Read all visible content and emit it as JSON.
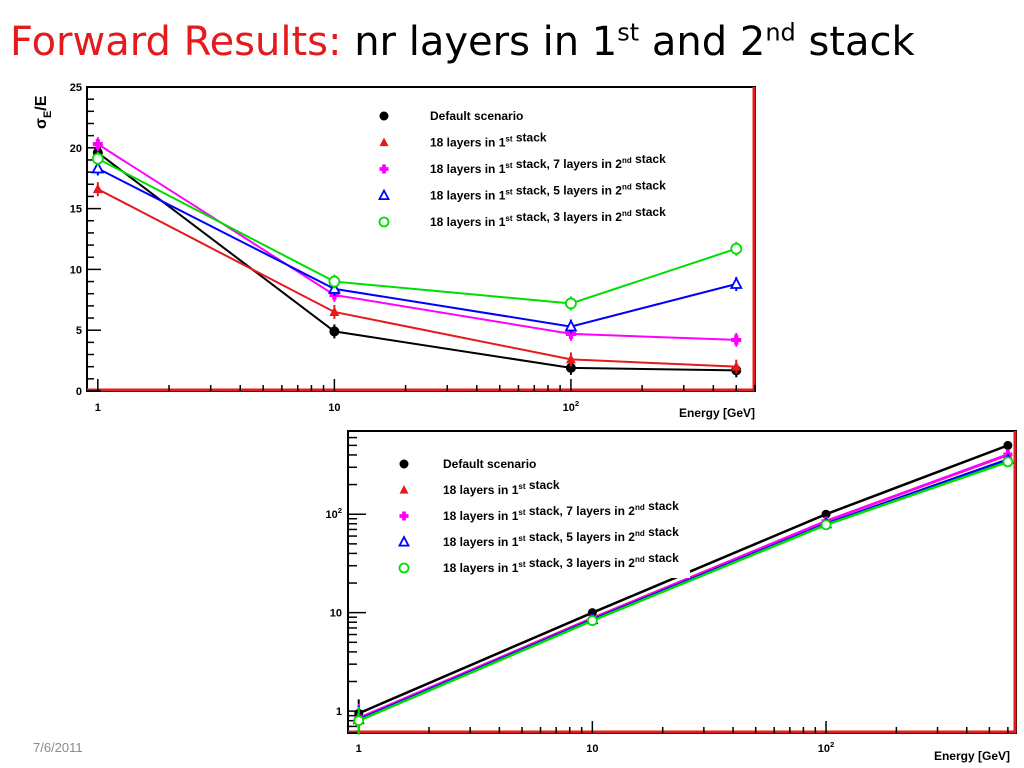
{
  "slide": {
    "title_red": "Forward Results:",
    "title_black_1": " nr layers in 1",
    "title_sup_1": "st",
    "title_black_2": " and 2",
    "title_sup_2": "nd",
    "title_black_3": " stack",
    "date": "7/6/2011"
  },
  "legend_entries": [
    {
      "text": "Default scenario",
      "color": "#000000",
      "marker": "filled-circle"
    },
    {
      "text": "18 layers in 1st stack",
      "color": "#e41a1c",
      "marker": "filled-triangle"
    },
    {
      "text": "18 layers in 1st stack, 7 layers in  2nd stack",
      "color": "#ff00ff",
      "marker": "filled-cross"
    },
    {
      "text": "18 layers in 1st stack, 5 layers in  2nd stack",
      "color": "#0000ff",
      "marker": "open-triangle"
    },
    {
      "text": "18 layers in 1st stack, 3 layers in  2nd stack",
      "color": "#00dd00",
      "marker": "open-circle"
    }
  ],
  "chart_data": [
    {
      "type": "line",
      "xscale": "log",
      "xlim": [
        0.9,
        600
      ],
      "ylim": [
        0,
        25
      ],
      "ylabel": "σE/E",
      "xlabel": "Energy [GeV]",
      "x_ticks": [
        "1",
        "10",
        "10^2"
      ],
      "y_ticks": [
        "0",
        "5",
        "10",
        "15",
        "20",
        "25"
      ],
      "legend_position": "top-right",
      "x": [
        1,
        10,
        100,
        500
      ],
      "series": [
        {
          "name": "Default scenario",
          "values": [
            19.6,
            4.9,
            1.9,
            1.7
          ]
        },
        {
          "name": "18 layers in 1st stack",
          "values": [
            16.6,
            6.5,
            2.6,
            2.0
          ]
        },
        {
          "name": "18 layers in 1st stack, 7 layers in  2nd stack",
          "values": [
            20.3,
            7.9,
            4.7,
            4.2
          ]
        },
        {
          "name": "18 layers in 1st stack, 5 layers in  2nd stack",
          "values": [
            18.3,
            8.4,
            5.3,
            8.8
          ]
        },
        {
          "name": "18 layers in 1st stack, 3 layers in  2nd stack",
          "values": [
            19.1,
            9.0,
            7.2,
            11.7
          ]
        }
      ]
    },
    {
      "type": "line",
      "xscale": "log",
      "yscale": "log",
      "xlim": [
        0.9,
        650
      ],
      "ylim": [
        0.6,
        700
      ],
      "xlabel": "Energy [GeV]",
      "x_ticks": [
        "1",
        "10",
        "10^2"
      ],
      "y_ticks": [
        "1",
        "10",
        "10^2"
      ],
      "legend_position": "top-left",
      "x": [
        1,
        10,
        100,
        600
      ],
      "series": [
        {
          "name": "Default scenario",
          "values": [
            0.95,
            10,
            100,
            500
          ]
        },
        {
          "name": "18 layers in 1st stack",
          "values": [
            0.85,
            8.8,
            85,
            400
          ]
        },
        {
          "name": "18 layers in 1st stack, 7 layers in  2nd stack",
          "values": [
            0.85,
            8.7,
            85,
            405
          ]
        },
        {
          "name": "18 layers in 1st stack, 5 layers in  2nd stack",
          "values": [
            0.82,
            8.5,
            80,
            360
          ]
        },
        {
          "name": "18 layers in 1st stack, 3 layers in  2nd stack",
          "values": [
            0.8,
            8.3,
            78,
            340
          ]
        }
      ]
    }
  ]
}
